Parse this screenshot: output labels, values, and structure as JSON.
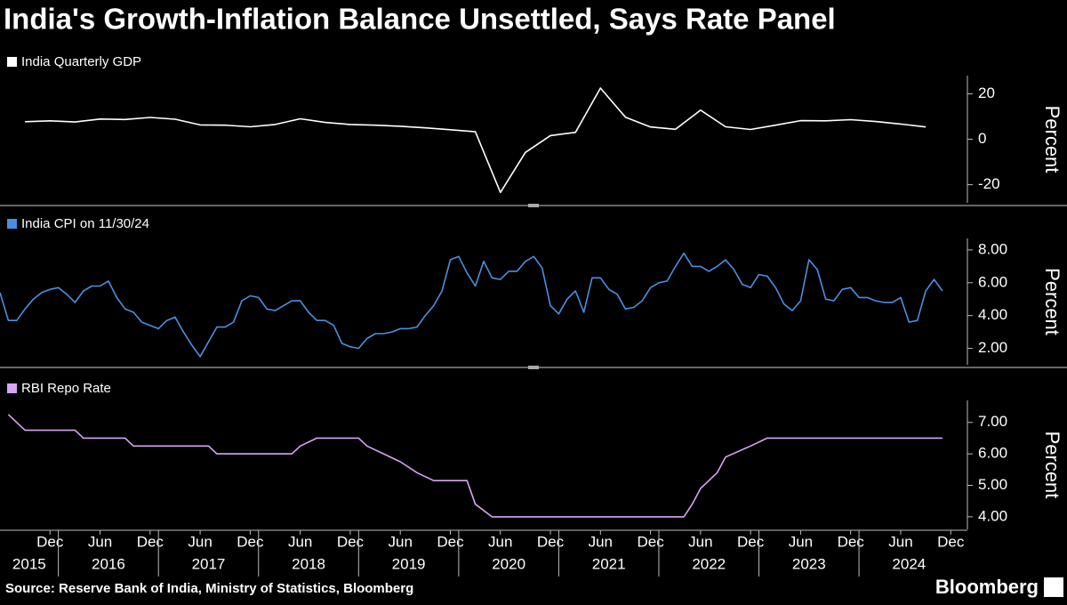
{
  "title": "India's Growth-Inflation Balance Unsettled, Says Rate Panel",
  "source": "Source: Reserve Bank of India, Ministry of Statistics, Bloomberg",
  "brand": "Bloomberg",
  "x_axis": {
    "xlim": [
      "2015-06",
      "2025-02"
    ],
    "xticks": [
      {
        "value": "2015-12",
        "label": "Dec"
      },
      {
        "value": "2016-06",
        "label": "Jun"
      },
      {
        "value": "2016-12",
        "label": "Dec"
      },
      {
        "value": "2017-06",
        "label": "Jun"
      },
      {
        "value": "2017-12",
        "label": "Dec"
      },
      {
        "value": "2018-06",
        "label": "Jun"
      },
      {
        "value": "2018-12",
        "label": "Dec"
      },
      {
        "value": "2019-06",
        "label": "Jun"
      },
      {
        "value": "2019-12",
        "label": "Dec"
      },
      {
        "value": "2020-06",
        "label": "Jun"
      },
      {
        "value": "2020-12",
        "label": "Dec"
      },
      {
        "value": "2021-06",
        "label": "Jun"
      },
      {
        "value": "2021-12",
        "label": "Dec"
      },
      {
        "value": "2022-06",
        "label": "Jun"
      },
      {
        "value": "2022-12",
        "label": "Dec"
      },
      {
        "value": "2023-06",
        "label": "Jun"
      },
      {
        "value": "2023-12",
        "label": "Dec"
      },
      {
        "value": "2024-06",
        "label": "Jun"
      },
      {
        "value": "2024-12",
        "label": "Dec"
      }
    ],
    "years": [
      "2015",
      "2016",
      "2017",
      "2018",
      "2019",
      "2020",
      "2021",
      "2022",
      "2023",
      "2024"
    ]
  },
  "chart_data": [
    {
      "type": "line",
      "y_label": "Percent",
      "x": [
        "2015-09",
        "2015-12",
        "2016-03",
        "2016-06",
        "2016-09",
        "2016-12",
        "2017-03",
        "2017-06",
        "2017-09",
        "2017-12",
        "2018-03",
        "2018-06",
        "2018-09",
        "2018-12",
        "2019-03",
        "2019-06",
        "2019-09",
        "2019-12",
        "2020-03",
        "2020-06",
        "2020-09",
        "2020-12",
        "2021-03",
        "2021-06",
        "2021-09",
        "2021-12",
        "2022-03",
        "2022-06",
        "2022-09",
        "2022-12",
        "2023-03",
        "2023-06",
        "2023-09",
        "2023-12",
        "2024-03",
        "2024-06",
        "2024-09"
      ],
      "series": [
        {
          "name": "India Quarterly GDP",
          "color": "#ffffff",
          "values": [
            7.7,
            8.1,
            7.6,
            8.9,
            8.7,
            9.6,
            8.8,
            6.3,
            6.2,
            5.5,
            6.5,
            9.0,
            7.4,
            6.5,
            6.2,
            5.7,
            5.0,
            4.2,
            3.3,
            -23.4,
            -5.8,
            1.6,
            3.0,
            22.5,
            9.7,
            5.4,
            4.4,
            12.8,
            5.5,
            4.3,
            6.2,
            8.2,
            8.1,
            8.6,
            7.8,
            6.7,
            5.4
          ]
        }
      ],
      "ylim": [
        -28,
        28
      ],
      "yticks": [
        -20,
        0,
        20
      ]
    },
    {
      "type": "line",
      "y_label": "Percent",
      "x": [
        "2015-06",
        "2015-07",
        "2015-08",
        "2015-09",
        "2015-10",
        "2015-11",
        "2015-12",
        "2016-01",
        "2016-02",
        "2016-03",
        "2016-04",
        "2016-05",
        "2016-06",
        "2016-07",
        "2016-08",
        "2016-09",
        "2016-10",
        "2016-11",
        "2016-12",
        "2017-01",
        "2017-02",
        "2017-03",
        "2017-04",
        "2017-05",
        "2017-06",
        "2017-07",
        "2017-08",
        "2017-09",
        "2017-10",
        "2017-11",
        "2017-12",
        "2018-01",
        "2018-02",
        "2018-03",
        "2018-04",
        "2018-05",
        "2018-06",
        "2018-07",
        "2018-08",
        "2018-09",
        "2018-10",
        "2018-11",
        "2018-12",
        "2019-01",
        "2019-02",
        "2019-03",
        "2019-04",
        "2019-05",
        "2019-06",
        "2019-07",
        "2019-08",
        "2019-09",
        "2019-10",
        "2019-11",
        "2019-12",
        "2020-01",
        "2020-02",
        "2020-03",
        "2020-04",
        "2020-05",
        "2020-06",
        "2020-07",
        "2020-08",
        "2020-09",
        "2020-10",
        "2020-11",
        "2020-12",
        "2021-01",
        "2021-02",
        "2021-03",
        "2021-04",
        "2021-05",
        "2021-06",
        "2021-07",
        "2021-08",
        "2021-09",
        "2021-10",
        "2021-11",
        "2021-12",
        "2022-01",
        "2022-02",
        "2022-03",
        "2022-04",
        "2022-05",
        "2022-06",
        "2022-07",
        "2022-08",
        "2022-09",
        "2022-10",
        "2022-11",
        "2022-12",
        "2023-01",
        "2023-02",
        "2023-03",
        "2023-04",
        "2023-05",
        "2023-06",
        "2023-07",
        "2023-08",
        "2023-09",
        "2023-10",
        "2023-11",
        "2023-12",
        "2024-01",
        "2024-02",
        "2024-03",
        "2024-04",
        "2024-05",
        "2024-06",
        "2024-07",
        "2024-08",
        "2024-09",
        "2024-10",
        "2024-11"
      ],
      "series": [
        {
          "name": "India CPI on 11/30/24",
          "color": "#4a90e2",
          "values": [
            5.4,
            3.7,
            3.7,
            4.4,
            5.0,
            5.4,
            5.6,
            5.7,
            5.3,
            4.8,
            5.5,
            5.8,
            5.8,
            6.1,
            5.1,
            4.4,
            4.2,
            3.6,
            3.4,
            3.2,
            3.7,
            3.9,
            3.0,
            2.2,
            1.5,
            2.4,
            3.3,
            3.3,
            3.6,
            4.9,
            5.2,
            5.1,
            4.4,
            4.3,
            4.6,
            4.9,
            4.9,
            4.2,
            3.7,
            3.7,
            3.4,
            2.3,
            2.1,
            2.0,
            2.6,
            2.9,
            2.9,
            3.0,
            3.2,
            3.2,
            3.3,
            4.0,
            4.6,
            5.5,
            7.4,
            7.6,
            6.6,
            5.8,
            7.3,
            6.3,
            6.2,
            6.7,
            6.7,
            7.3,
            7.6,
            6.9,
            4.6,
            4.1,
            5.0,
            5.5,
            4.2,
            6.3,
            6.3,
            5.6,
            5.3,
            4.4,
            4.5,
            4.9,
            5.7,
            6.0,
            6.1,
            7.0,
            7.8,
            7.0,
            7.0,
            6.7,
            7.0,
            7.4,
            6.8,
            5.9,
            5.7,
            6.5,
            6.4,
            5.7,
            4.7,
            4.3,
            4.9,
            7.4,
            6.8,
            5.0,
            4.9,
            5.6,
            5.7,
            5.1,
            5.1,
            4.9,
            4.8,
            4.8,
            5.1,
            3.6,
            3.7,
            5.5,
            6.2,
            5.5
          ]
        }
      ],
      "ylim": [
        1,
        8.7
      ],
      "yticks": [
        {
          "value": 2,
          "label": "2.00"
        },
        {
          "value": 4,
          "label": "4.00"
        },
        {
          "value": 6,
          "label": "6.00"
        },
        {
          "value": 8,
          "label": "8.00"
        }
      ]
    },
    {
      "type": "line",
      "y_label": "Percent",
      "x": [
        "2015-07",
        "2015-09",
        "2016-03",
        "2016-04",
        "2016-09",
        "2016-10",
        "2017-07",
        "2017-08",
        "2018-05",
        "2018-06",
        "2018-08",
        "2019-01",
        "2019-02",
        "2019-04",
        "2019-06",
        "2019-08",
        "2019-10",
        "2020-02",
        "2020-03",
        "2020-05",
        "2022-04",
        "2022-05",
        "2022-06",
        "2022-08",
        "2022-09",
        "2022-12",
        "2023-02",
        "2024-11"
      ],
      "series": [
        {
          "name": "RBI Repo Rate",
          "color": "#d6a6f5",
          "values": [
            7.25,
            6.75,
            6.75,
            6.5,
            6.5,
            6.25,
            6.25,
            6.0,
            6.0,
            6.25,
            6.5,
            6.5,
            6.25,
            6.0,
            5.75,
            5.4,
            5.15,
            5.15,
            4.4,
            4.0,
            4.0,
            4.4,
            4.9,
            5.4,
            5.9,
            6.25,
            6.5,
            6.5
          ]
        }
      ],
      "ylim": [
        3.6,
        7.7
      ],
      "yticks": [
        {
          "value": 4,
          "label": "4.00"
        },
        {
          "value": 5,
          "label": "5.00"
        },
        {
          "value": 6,
          "label": "6.00"
        },
        {
          "value": 7,
          "label": "7.00"
        }
      ]
    }
  ]
}
